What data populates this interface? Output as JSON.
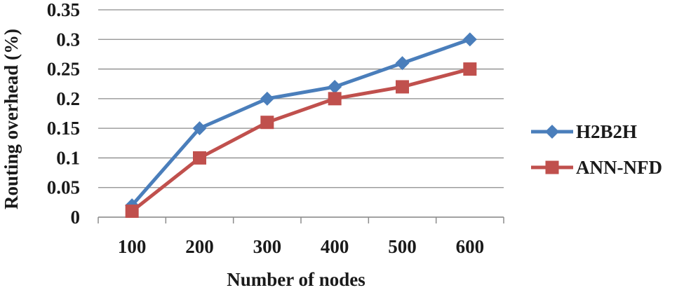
{
  "chart_data": {
    "type": "line",
    "xlabel": "Number of nodes",
    "ylabel": "Routing overhead (%)",
    "categories": [
      "100",
      "200",
      "300",
      "400",
      "500",
      "600"
    ],
    "ylim": [
      0,
      0.35
    ],
    "yticks": [
      "0",
      "0.05",
      "0.1",
      "0.15",
      "0.2",
      "0.25",
      "0.3",
      "0.35"
    ],
    "grid": true,
    "legend_position": "right",
    "series": [
      {
        "name": "H2B2H",
        "values": [
          0.02,
          0.15,
          0.2,
          0.22,
          0.26,
          0.3
        ],
        "color": "#4a7ebb",
        "marker": "diamond"
      },
      {
        "name": "ANN-NFD",
        "values": [
          0.01,
          0.1,
          0.16,
          0.2,
          0.22,
          0.25
        ],
        "color": "#c0504d",
        "marker": "square"
      }
    ]
  }
}
